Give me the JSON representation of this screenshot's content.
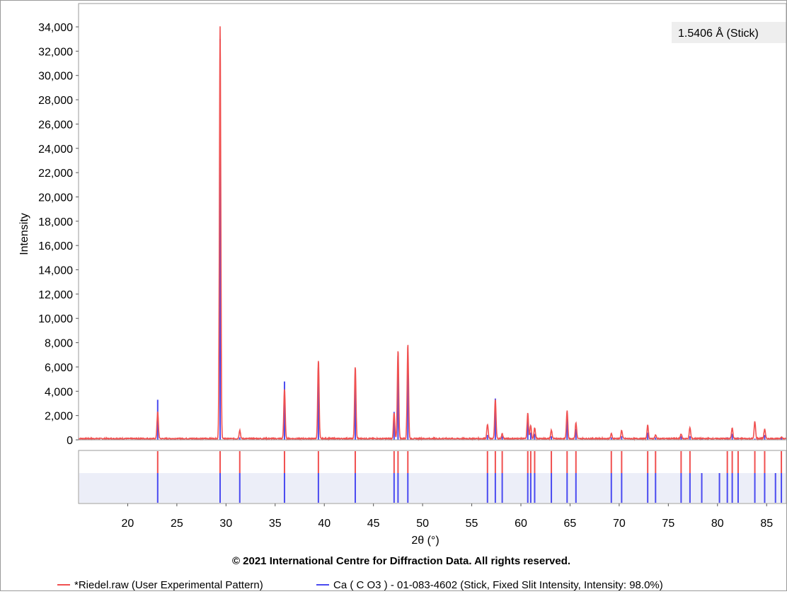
{
  "chart_data": {
    "type": "line",
    "badge": "1.5406 Å (Stick)",
    "xlabel": "2θ (°)",
    "ylabel": "Intensity",
    "xlim": [
      15,
      87
    ],
    "ylim": [
      0,
      34000
    ],
    "x_ticks": [
      20,
      25,
      30,
      35,
      40,
      45,
      50,
      55,
      60,
      65,
      70,
      75,
      80,
      85
    ],
    "y_ticks": [
      0,
      2000,
      4000,
      6000,
      8000,
      10000,
      12000,
      14000,
      16000,
      18000,
      20000,
      22000,
      24000,
      26000,
      28000,
      30000,
      32000,
      34000
    ],
    "y_tick_labels": [
      "0",
      "2,000",
      "4,000",
      "6,000",
      "8,000",
      "10,000",
      "12,000",
      "14,000",
      "16,000",
      "18,000",
      "20,000",
      "22,000",
      "24,000",
      "26,000",
      "28,000",
      "30,000",
      "32,000",
      "34,000"
    ],
    "baseline": 100,
    "copyright": "© 2021 International Centre for Diffraction Data. All rights reserved.",
    "series": [
      {
        "name": "*Riedel.raw (User Experimental Pattern)",
        "color": "#f05050",
        "kind": "pattern",
        "peaks": [
          {
            "x": 23.05,
            "y": 2300
          },
          {
            "x": 29.4,
            "y": 34000
          },
          {
            "x": 31.4,
            "y": 800
          },
          {
            "x": 35.95,
            "y": 4200
          },
          {
            "x": 39.4,
            "y": 6600
          },
          {
            "x": 43.15,
            "y": 6000
          },
          {
            "x": 47.1,
            "y": 2200
          },
          {
            "x": 47.5,
            "y": 7400
          },
          {
            "x": 48.5,
            "y": 7900
          },
          {
            "x": 56.6,
            "y": 1300
          },
          {
            "x": 57.4,
            "y": 3300
          },
          {
            "x": 58.1,
            "y": 500
          },
          {
            "x": 60.7,
            "y": 2200
          },
          {
            "x": 61.0,
            "y": 1200
          },
          {
            "x": 61.4,
            "y": 1000
          },
          {
            "x": 63.1,
            "y": 800
          },
          {
            "x": 64.7,
            "y": 2400
          },
          {
            "x": 65.6,
            "y": 1400
          },
          {
            "x": 69.2,
            "y": 500
          },
          {
            "x": 70.25,
            "y": 800
          },
          {
            "x": 72.9,
            "y": 1200
          },
          {
            "x": 73.7,
            "y": 400
          },
          {
            "x": 76.3,
            "y": 500
          },
          {
            "x": 77.2,
            "y": 1000
          },
          {
            "x": 81.5,
            "y": 1000
          },
          {
            "x": 83.8,
            "y": 1500
          },
          {
            "x": 84.8,
            "y": 900
          },
          {
            "x": 86.5,
            "y": 250
          }
        ]
      },
      {
        "name": "Ca ( C O3 ) - 01-083-4602 (Stick, Fixed Slit Intensity, Intensity: 98.0%)",
        "color": "#4a4af0",
        "kind": "stick",
        "sticks": [
          {
            "x": 23.05,
            "y": 3300
          },
          {
            "x": 29.4,
            "y": 33000
          },
          {
            "x": 31.4,
            "y": 200
          },
          {
            "x": 35.95,
            "y": 4800
          },
          {
            "x": 39.4,
            "y": 5900
          },
          {
            "x": 43.15,
            "y": 5500
          },
          {
            "x": 47.1,
            "y": 2300
          },
          {
            "x": 47.5,
            "y": 6900
          },
          {
            "x": 48.5,
            "y": 6800
          },
          {
            "x": 56.6,
            "y": 400
          },
          {
            "x": 57.4,
            "y": 3400
          },
          {
            "x": 58.1,
            "y": 300
          },
          {
            "x": 60.7,
            "y": 1500
          },
          {
            "x": 61.0,
            "y": 600
          },
          {
            "x": 61.4,
            "y": 500
          },
          {
            "x": 63.1,
            "y": 300
          },
          {
            "x": 64.7,
            "y": 1900
          },
          {
            "x": 65.6,
            "y": 900
          },
          {
            "x": 69.2,
            "y": 200
          },
          {
            "x": 70.25,
            "y": 300
          },
          {
            "x": 72.9,
            "y": 600
          },
          {
            "x": 73.7,
            "y": 200
          },
          {
            "x": 76.3,
            "y": 300
          },
          {
            "x": 77.2,
            "y": 300
          },
          {
            "x": 78.4,
            "y": 100
          },
          {
            "x": 80.2,
            "y": 100
          },
          {
            "x": 81.0,
            "y": 200
          },
          {
            "x": 81.5,
            "y": 500
          },
          {
            "x": 82.1,
            "y": 200
          },
          {
            "x": 83.8,
            "y": 100
          },
          {
            "x": 84.8,
            "y": 400
          },
          {
            "x": 85.9,
            "y": 100
          },
          {
            "x": 86.5,
            "y": 200
          }
        ]
      }
    ],
    "reference_rows": {
      "red_positions": [
        23.05,
        29.4,
        31.4,
        35.95,
        39.4,
        43.15,
        47.1,
        47.5,
        48.5,
        56.6,
        57.4,
        58.1,
        60.7,
        61.0,
        61.4,
        63.1,
        64.7,
        65.6,
        69.2,
        70.25,
        72.9,
        73.7,
        76.3,
        77.2,
        81.0,
        81.5,
        82.1,
        83.8,
        84.8,
        86.5
      ],
      "blue_positions": [
        23.05,
        29.4,
        31.4,
        35.95,
        39.4,
        43.15,
        47.1,
        47.5,
        48.5,
        56.6,
        57.4,
        58.1,
        60.7,
        61.0,
        61.4,
        63.1,
        64.7,
        65.6,
        69.2,
        70.25,
        72.9,
        73.7,
        76.3,
        77.2,
        78.4,
        80.2,
        81.0,
        81.5,
        82.1,
        83.8,
        84.8,
        85.9,
        86.5
      ]
    }
  }
}
